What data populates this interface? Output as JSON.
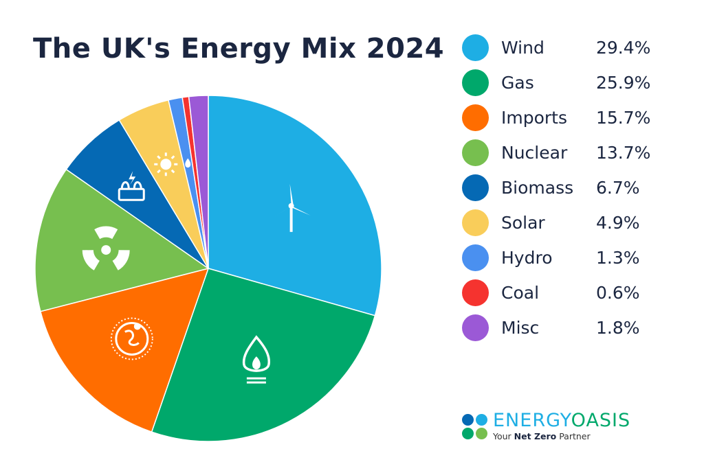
{
  "chart_data": {
    "type": "pie",
    "title": "The UK's Energy Mix 2024",
    "start_angle": "top",
    "direction": "clockwise",
    "legend_position": "right",
    "slices": [
      {
        "label": "Wind",
        "value": 29.4,
        "display": "29.4%",
        "color": "#1eaee4",
        "icon": "wind-turbine-icon"
      },
      {
        "label": "Gas",
        "value": 25.9,
        "display": "25.9%",
        "color": "#00a86b",
        "icon": "flame-icon"
      },
      {
        "label": "Imports",
        "value": 15.7,
        "display": "15.7%",
        "color": "#ff6d00",
        "icon": "globe-pin-icon"
      },
      {
        "label": "Nuclear",
        "value": 13.7,
        "display": "13.7%",
        "color": "#77bf4f",
        "icon": "radiation-icon"
      },
      {
        "label": "Biomass",
        "value": 6.7,
        "display": "6.7%",
        "color": "#0569b4",
        "icon": "biomass-plant-icon"
      },
      {
        "label": "Solar",
        "value": 4.9,
        "display": "4.9%",
        "color": "#f9cd5a",
        "icon": "sun-icon"
      },
      {
        "label": "Hydro",
        "value": 1.3,
        "display": "1.3%",
        "color": "#4a90f0",
        "icon": "water-drop-icon"
      },
      {
        "label": "Coal",
        "value": 0.6,
        "display": "0.6%",
        "color": "#f5332f",
        "icon": ""
      },
      {
        "label": "Misc",
        "value": 1.8,
        "display": "1.8%",
        "color": "#9b59d6",
        "icon": ""
      }
    ]
  },
  "logo": {
    "word_part1": "ENERGY",
    "word_part2": "OASIS",
    "tagline_pre": "Your ",
    "tagline_bold": "Net Zero",
    "tagline_post": " Partner",
    "color1": "#1eaee4",
    "color2": "#00a86b"
  }
}
